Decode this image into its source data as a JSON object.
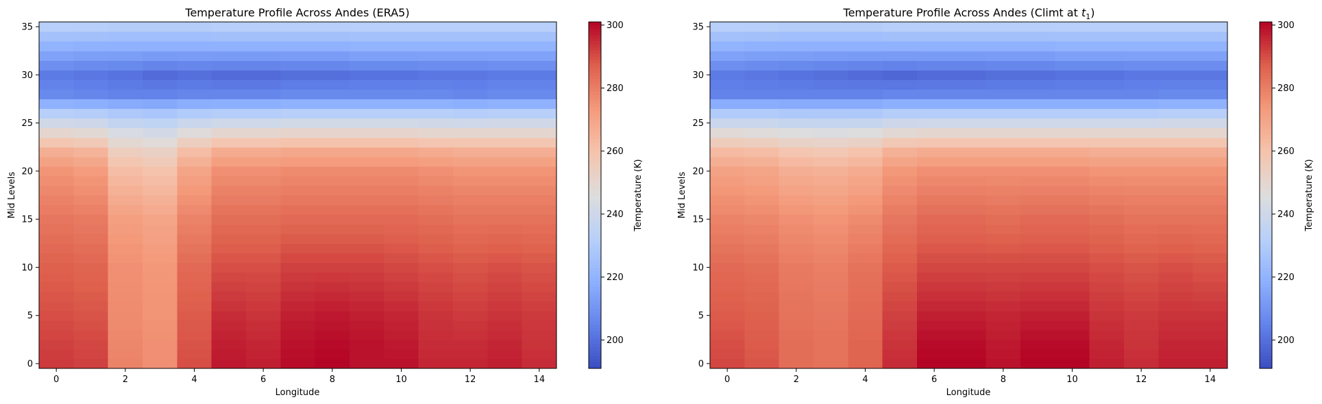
{
  "chart_data": [
    {
      "type": "heatmap",
      "title": "Temperature Profile Across Andes (ERA5)",
      "xlabel": "Longitude",
      "ylabel": "Mid Levels",
      "colorbar_label": "Temperature (K)",
      "colormap": "coolwarm",
      "vmin": 191,
      "vmax": 301,
      "xlim": [
        -0.5,
        14.5
      ],
      "ylim": [
        -0.5,
        35.5
      ],
      "x_ticks": [
        0,
        2,
        4,
        6,
        8,
        10,
        12,
        14
      ],
      "y_ticks": [
        0,
        5,
        10,
        15,
        20,
        25,
        30,
        35
      ],
      "colorbar_ticks": [
        200,
        220,
        240,
        260,
        280,
        300
      ],
      "grid": false,
      "profile_levels": [
        0,
        2,
        5,
        10,
        15,
        20,
        22,
        24,
        26,
        28,
        30,
        33,
        35
      ],
      "columns": [
        [
          293,
          292,
          290,
          287,
          282,
          275,
          267,
          250,
          232,
          207,
          203,
          220,
          232
        ],
        [
          292,
          291,
          289,
          286,
          281,
          273,
          265,
          249,
          231,
          206,
          202,
          219,
          232
        ],
        [
          279,
          278,
          277,
          276,
          272,
          262,
          255,
          244,
          229,
          205,
          201,
          219,
          231
        ],
        [
          276,
          276,
          275,
          274,
          270,
          260,
          253,
          242,
          228,
          205,
          199,
          219,
          231
        ],
        [
          290,
          289,
          288,
          285,
          279,
          270,
          262,
          247,
          230,
          206,
          200,
          219,
          231
        ],
        [
          298,
          297,
          295,
          290,
          284,
          276,
          268,
          250,
          231,
          206,
          199,
          219,
          232
        ],
        [
          297,
          296,
          294,
          290,
          284,
          276,
          268,
          250,
          231,
          206,
          199,
          219,
          232
        ],
        [
          300,
          299,
          297,
          292,
          285,
          277,
          269,
          251,
          232,
          207,
          200,
          219,
          232
        ],
        [
          301,
          300,
          298,
          292,
          285,
          277,
          269,
          251,
          232,
          207,
          200,
          219,
          232
        ],
        [
          299,
          299,
          297,
          292,
          285,
          277,
          269,
          251,
          232,
          207,
          201,
          220,
          232
        ],
        [
          299,
          298,
          296,
          291,
          285,
          277,
          269,
          251,
          232,
          207,
          201,
          220,
          232
        ],
        [
          296,
          295,
          294,
          290,
          284,
          276,
          268,
          250,
          232,
          207,
          202,
          220,
          232
        ],
        [
          296,
          295,
          293,
          289,
          283,
          275,
          267,
          250,
          231,
          206,
          202,
          220,
          232
        ],
        [
          297,
          296,
          294,
          290,
          283,
          275,
          267,
          250,
          232,
          207,
          203,
          220,
          232
        ],
        [
          295,
          294,
          293,
          289,
          283,
          275,
          267,
          250,
          232,
          207,
          203,
          220,
          232
        ]
      ]
    },
    {
      "type": "heatmap",
      "title": "Temperature Profile Across Andes (Climt at ",
      "title_math": "t",
      "title_subscript": "1",
      "title_end": ")",
      "xlabel": "Longitude",
      "ylabel": "Mid Levels",
      "colorbar_label": "Temperature (K)",
      "colormap": "coolwarm",
      "vmin": 191,
      "vmax": 301,
      "xlim": [
        -0.5,
        14.5
      ],
      "ylim": [
        -0.5,
        35.5
      ],
      "x_ticks": [
        0,
        2,
        4,
        6,
        8,
        10,
        12,
        14
      ],
      "y_ticks": [
        0,
        5,
        10,
        15,
        20,
        25,
        30,
        35
      ],
      "colorbar_ticks": [
        200,
        220,
        240,
        260,
        280,
        300
      ],
      "grid": false,
      "profile_levels": [
        0,
        2,
        5,
        10,
        15,
        20,
        22,
        24,
        26,
        28,
        30,
        33,
        35
      ],
      "columns": [
        [
          291,
          290,
          288,
          285,
          279,
          271,
          263,
          248,
          230,
          205,
          203,
          220,
          232
        ],
        [
          289,
          288,
          287,
          284,
          278,
          270,
          262,
          247,
          230,
          205,
          202,
          219,
          232
        ],
        [
          284,
          284,
          283,
          281,
          276,
          267,
          259,
          246,
          229,
          205,
          201,
          219,
          231
        ],
        [
          283,
          283,
          282,
          280,
          275,
          266,
          258,
          245,
          229,
          205,
          200,
          219,
          231
        ],
        [
          286,
          286,
          285,
          283,
          277,
          268,
          260,
          246,
          229,
          205,
          199,
          219,
          231
        ],
        [
          295,
          294,
          292,
          288,
          282,
          274,
          266,
          249,
          231,
          206,
          198,
          219,
          232
        ],
        [
          301,
          300,
          297,
          291,
          285,
          276,
          268,
          250,
          231,
          206,
          199,
          219,
          232
        ],
        [
          301,
          300,
          297,
          291,
          285,
          276,
          268,
          250,
          231,
          206,
          199,
          219,
          232
        ],
        [
          299,
          298,
          296,
          291,
          284,
          276,
          268,
          250,
          231,
          206,
          200,
          219,
          232
        ],
        [
          301,
          300,
          297,
          291,
          285,
          276,
          268,
          250,
          231,
          206,
          200,
          219,
          232
        ],
        [
          301,
          300,
          297,
          291,
          285,
          276,
          268,
          250,
          231,
          206,
          201,
          220,
          232
        ],
        [
          297,
          296,
          294,
          290,
          284,
          275,
          267,
          250,
          231,
          206,
          201,
          220,
          232
        ],
        [
          295,
          294,
          293,
          289,
          283,
          275,
          267,
          250,
          231,
          206,
          202,
          220,
          232
        ],
        [
          297,
          296,
          294,
          290,
          283,
          275,
          267,
          250,
          232,
          207,
          202,
          220,
          232
        ],
        [
          297,
          296,
          294,
          289,
          283,
          275,
          267,
          250,
          232,
          207,
          202,
          220,
          232
        ]
      ]
    }
  ]
}
